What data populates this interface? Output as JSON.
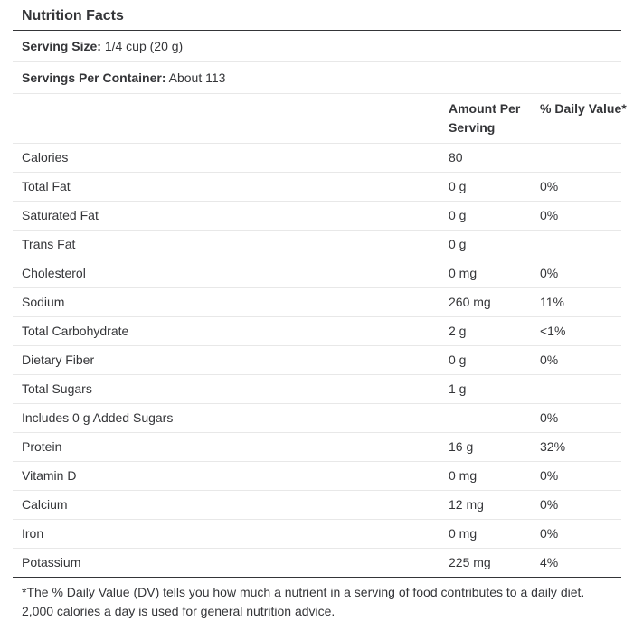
{
  "panel": {
    "title": "Nutrition Facts",
    "serving_size": {
      "label": "Serving Size:",
      "value": "1/4 cup (20 g)"
    },
    "servings_per_container": {
      "label": "Servings Per Container:",
      "value": "About 113"
    },
    "columns": {
      "amount": "Amount Per Serving",
      "daily_value": "% Daily Value*"
    },
    "rows": [
      {
        "name": "Calories",
        "amount": "80",
        "dv": ""
      },
      {
        "name": "Total Fat",
        "amount": "0 g",
        "dv": "0%"
      },
      {
        "name": "Saturated Fat",
        "amount": "0 g",
        "dv": "0%"
      },
      {
        "name": "Trans Fat",
        "amount": "0 g",
        "dv": ""
      },
      {
        "name": "Cholesterol",
        "amount": "0 mg",
        "dv": "0%"
      },
      {
        "name": "Sodium",
        "amount": "260 mg",
        "dv": "11%"
      },
      {
        "name": "Total Carbohydrate",
        "amount": "2 g",
        "dv": "<1%"
      },
      {
        "name": "Dietary Fiber",
        "amount": "0 g",
        "dv": "0%"
      },
      {
        "name": "Total Sugars",
        "amount": "1 g",
        "dv": ""
      },
      {
        "name": "Includes 0 g Added Sugars",
        "amount": "",
        "dv": "0%"
      },
      {
        "name": "Protein",
        "amount": "16 g",
        "dv": "32%"
      },
      {
        "name": "Vitamin D",
        "amount": "0 mg",
        "dv": "0%"
      },
      {
        "name": "Calcium",
        "amount": "12 mg",
        "dv": "0%"
      },
      {
        "name": "Iron",
        "amount": "0 mg",
        "dv": "0%"
      },
      {
        "name": "Potassium",
        "amount": "225 mg",
        "dv": "4%"
      }
    ],
    "footnote": "*The % Daily Value (DV) tells you how much a nutrient in a serving of food contributes to a daily diet. 2,000 calories a day is used for general nutrition advice."
  },
  "colors": {
    "background": "#ffffff",
    "text": "#343538",
    "divider_light": "#e8e8e8",
    "divider_dark": "#343538"
  }
}
